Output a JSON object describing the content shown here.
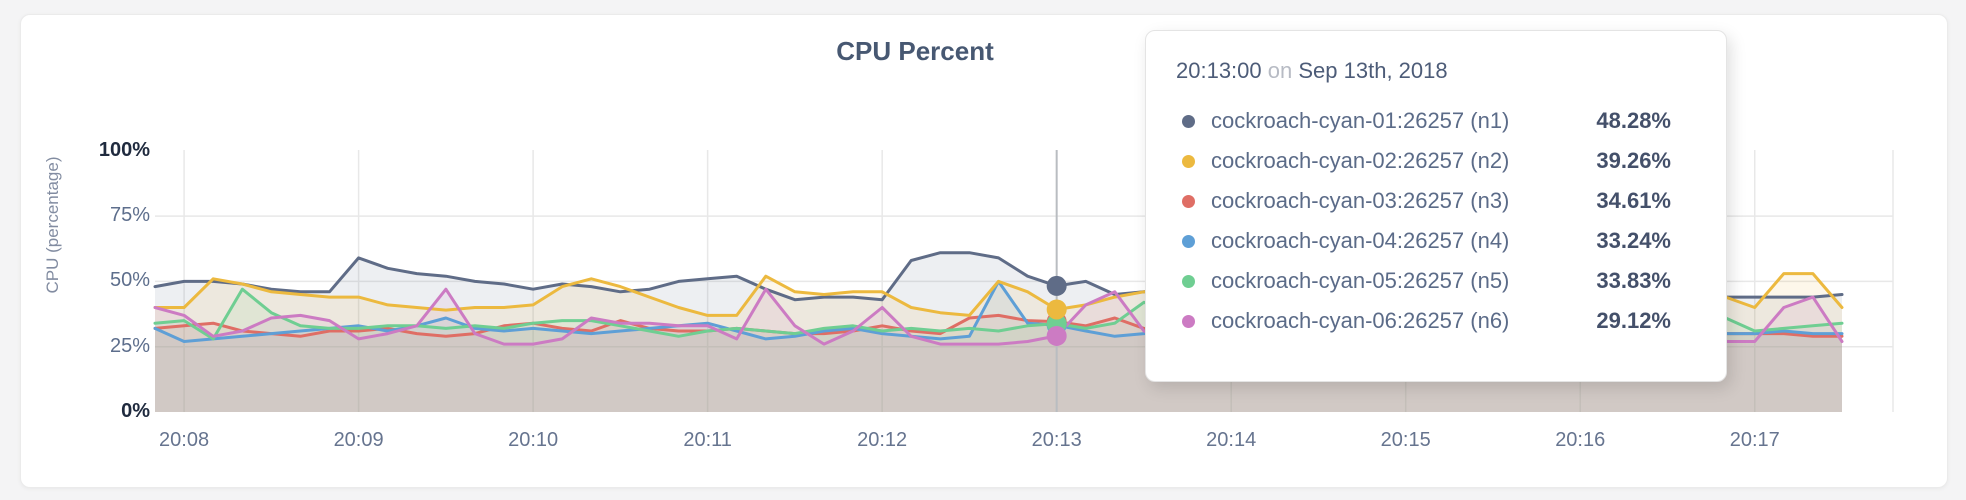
{
  "header": {
    "title": "CPU Percent"
  },
  "chart": {
    "y_axis_label": "CPU (percentage)"
  },
  "colors": {
    "page_background": "#f4f4f5",
    "card_background": "#ffffff",
    "gridline": "#e8e8e8",
    "hover_line": "#b9bdc1",
    "title_text": "#475872",
    "tick_text": "#5d6e8c",
    "tick_text_strong": "#1f2a3e"
  },
  "chart_data": {
    "type": "area",
    "title": "CPU Percent",
    "ylabel": "CPU (percentage)",
    "ylim": [
      0,
      100
    ],
    "grid": true,
    "x_start": "20:07:50",
    "x_step_seconds": 10,
    "x_ticks": [
      "20:08",
      "20:09",
      "20:10",
      "20:11",
      "20:12",
      "20:13",
      "20:14",
      "20:15",
      "20:16",
      "20:17"
    ],
    "y_ticks": [
      {
        "label": "100%",
        "value": 100,
        "emphasis": true
      },
      {
        "label": "75%",
        "value": 75,
        "emphasis": false
      },
      {
        "label": "50%",
        "value": 50,
        "emphasis": false
      },
      {
        "label": "25%",
        "value": 25,
        "emphasis": false
      },
      {
        "label": "0%",
        "value": 0,
        "emphasis": true
      }
    ],
    "highlight_index": 31,
    "highlight_time": "20:13:00",
    "series": [
      {
        "name": "cockroach-cyan-01:26257 (n1)",
        "color": "#5F6C87",
        "values": [
          48,
          50,
          50,
          49,
          47,
          46,
          46,
          59,
          55,
          53,
          52,
          50,
          49,
          47,
          49,
          48,
          46,
          47,
          50,
          51,
          52,
          47,
          43,
          44,
          44,
          43,
          58,
          61,
          61,
          59,
          52,
          48.28,
          50,
          45,
          46,
          47,
          47,
          48,
          48,
          48,
          47,
          47,
          48,
          48,
          47,
          48,
          47,
          46,
          47,
          46,
          45,
          46,
          45,
          45,
          44,
          44,
          44,
          44,
          45
        ]
      },
      {
        "name": "cockroach-cyan-02:26257 (n2)",
        "color": "#ECB93F",
        "values": [
          40,
          40,
          51,
          49,
          46,
          45,
          44,
          44,
          41,
          40,
          39,
          40,
          40,
          41,
          48,
          51,
          48,
          44,
          40,
          37,
          37,
          52,
          46,
          45,
          46,
          46,
          40,
          38,
          37,
          50,
          46,
          39.26,
          41,
          44,
          46,
          45,
          44,
          45,
          44,
          45,
          46,
          45,
          44,
          45,
          44,
          45,
          44,
          45,
          46,
          45,
          44,
          45,
          46,
          48,
          44,
          40,
          53,
          53,
          40
        ]
      },
      {
        "name": "cockroach-cyan-03:26257 (n3)",
        "color": "#DF6E65",
        "values": [
          32,
          33,
          34,
          31,
          30,
          29,
          31,
          31,
          32,
          30,
          29,
          30,
          33,
          34,
          32,
          31,
          35,
          32,
          31,
          31,
          32,
          31,
          30,
          30,
          31,
          33,
          31,
          30,
          36,
          37,
          35,
          34.61,
          33,
          36,
          32,
          31,
          31,
          31,
          32,
          31,
          30,
          31,
          31,
          30,
          31,
          32,
          31,
          30,
          31,
          31,
          30,
          31,
          31,
          31,
          30,
          30,
          30,
          29,
          29
        ]
      },
      {
        "name": "cockroach-cyan-04:26257 (n4)",
        "color": "#5E9FD6",
        "values": [
          32,
          27,
          28,
          29,
          30,
          31,
          32,
          33,
          31,
          33,
          36,
          32,
          31,
          32,
          31,
          30,
          31,
          32,
          33,
          34,
          31,
          28,
          29,
          31,
          32,
          30,
          29,
          28,
          29,
          50,
          34,
          33.24,
          31,
          29,
          30,
          31,
          30,
          31,
          30,
          31,
          31,
          30,
          31,
          30,
          31,
          30,
          31,
          31,
          30,
          31,
          30,
          31,
          30,
          31,
          30,
          30,
          31,
          30,
          30
        ]
      },
      {
        "name": "cockroach-cyan-05:26257 (n5)",
        "color": "#6FCE92",
        "values": [
          34,
          35,
          28,
          47,
          38,
          33,
          32,
          32,
          33,
          33,
          32,
          33,
          32,
          34,
          35,
          35,
          33,
          31,
          29,
          31,
          32,
          31,
          30,
          32,
          33,
          31,
          32,
          31,
          32,
          31,
          33,
          33.83,
          32,
          34,
          42,
          38,
          34,
          33,
          34,
          33,
          34,
          33,
          34,
          33,
          34,
          33,
          34,
          33,
          34,
          33,
          34,
          35,
          36,
          37,
          36,
          31,
          32,
          33,
          34
        ]
      },
      {
        "name": "cockroach-cyan-06:26257 (n6)",
        "color": "#CC7BC3",
        "values": [
          40,
          37,
          29,
          31,
          36,
          37,
          35,
          28,
          30,
          33,
          47,
          30,
          26,
          26,
          28,
          36,
          34,
          34,
          33,
          33,
          28,
          47,
          33,
          26,
          31,
          40,
          29,
          26,
          26,
          26,
          27,
          29.12,
          41,
          46,
          31,
          28,
          27,
          28,
          27,
          28,
          27,
          28,
          27,
          28,
          27,
          28,
          27,
          28,
          27,
          28,
          27,
          26,
          27,
          27,
          27,
          27,
          40,
          44,
          27
        ]
      }
    ]
  },
  "tooltip": {
    "time": "20:13:00",
    "on_word": "on",
    "date": "Sep 13th, 2018",
    "rows": [
      {
        "label": "cockroach-cyan-01:26257 (n1)",
        "value": "48.28%",
        "color": "#5F6C87"
      },
      {
        "label": "cockroach-cyan-02:26257 (n2)",
        "value": "39.26%",
        "color": "#ECB93F"
      },
      {
        "label": "cockroach-cyan-03:26257 (n3)",
        "value": "34.61%",
        "color": "#DF6E65"
      },
      {
        "label": "cockroach-cyan-04:26257 (n4)",
        "value": "33.24%",
        "color": "#5E9FD6"
      },
      {
        "label": "cockroach-cyan-05:26257 (n5)",
        "value": "33.83%",
        "color": "#6FCE92"
      },
      {
        "label": "cockroach-cyan-06:26257 (n6)",
        "value": "29.12%",
        "color": "#CC7BC3"
      }
    ]
  }
}
